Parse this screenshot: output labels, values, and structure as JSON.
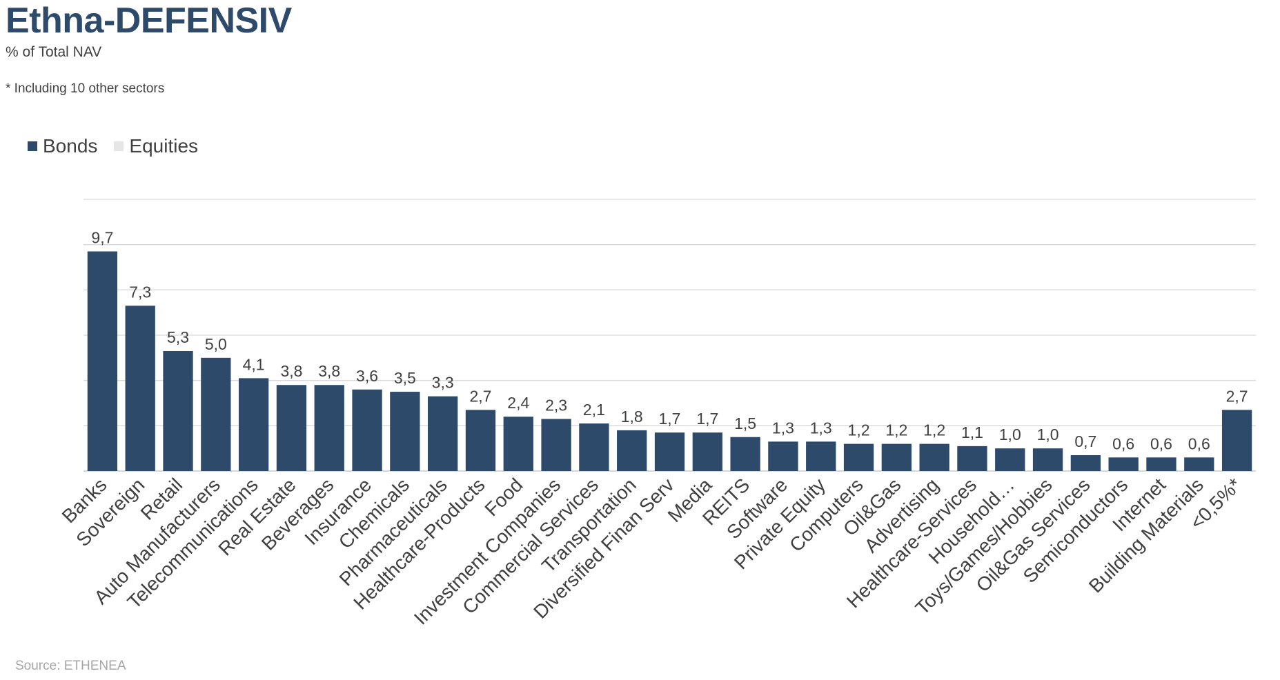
{
  "header": {
    "title": "Ethna-DEFENSIV",
    "subtitle": "% of Total NAV",
    "footnote": "* Including 10 other sectors"
  },
  "legend": [
    {
      "label": "Bonds",
      "color": "#2e4a6b"
    },
    {
      "label": "Equities",
      "color": "#e6e6e6"
    }
  ],
  "source": "Source: ETHENEA",
  "chart_data": {
    "type": "bar",
    "title": "Ethna-DEFENSIV",
    "ylabel": "",
    "xlabel": "",
    "ylim": [
      0,
      12
    ],
    "grid": true,
    "legend_position": "top-left",
    "categories": [
      "Banks",
      "Sovereign",
      "Retail",
      "Auto Manufacturers",
      "Telecommunications",
      "Real Estate",
      "Beverages",
      "Insurance",
      "Chemicals",
      "Pharmaceuticals",
      "Healthcare-Products",
      "Food",
      "Investment Companies",
      "Commercial Services",
      "Transportation",
      "Diversified Finan Serv",
      "Media",
      "REITS",
      "Software",
      "Private Equity",
      "Computers",
      "Oil&Gas",
      "Advertising",
      "Healthcare-Services",
      "Household…",
      "Toys/Games/Hobbies",
      "Oil&Gas Services",
      "Semiconductors",
      "Internet",
      "Building Materials",
      "<0,5%*"
    ],
    "series": [
      {
        "name": "Bonds",
        "color": "#2e4a6b",
        "values": [
          9.7,
          7.3,
          5.3,
          5.0,
          4.1,
          3.8,
          3.8,
          3.6,
          3.5,
          3.3,
          2.7,
          2.4,
          2.3,
          2.1,
          1.8,
          1.7,
          1.7,
          1.5,
          1.3,
          1.3,
          1.2,
          1.2,
          1.2,
          1.1,
          1.0,
          1.0,
          0.7,
          0.6,
          0.6,
          0.6,
          2.7
        ]
      },
      {
        "name": "Equities",
        "color": "#e6e6e6",
        "values": [
          0,
          0,
          0,
          0,
          0,
          0,
          0,
          0,
          0,
          0,
          0,
          0,
          0,
          0,
          0,
          0,
          0,
          0,
          0,
          0,
          0,
          0,
          0,
          0,
          0,
          0,
          0,
          0,
          0,
          0,
          0
        ]
      }
    ],
    "data_labels": [
      "9,7",
      "7,3",
      "5,3",
      "5,0",
      "4,1",
      "3,8",
      "3,8",
      "3,6",
      "3,5",
      "3,3",
      "2,7",
      "2,4",
      "2,3",
      "2,1",
      "1,8",
      "1,7",
      "1,7",
      "1,5",
      "1,3",
      "1,3",
      "1,2",
      "1,2",
      "1,2",
      "1,1",
      "1,0",
      "1,0",
      "0,7",
      "0,6",
      "0,6",
      "0,6",
      "2,7"
    ]
  }
}
